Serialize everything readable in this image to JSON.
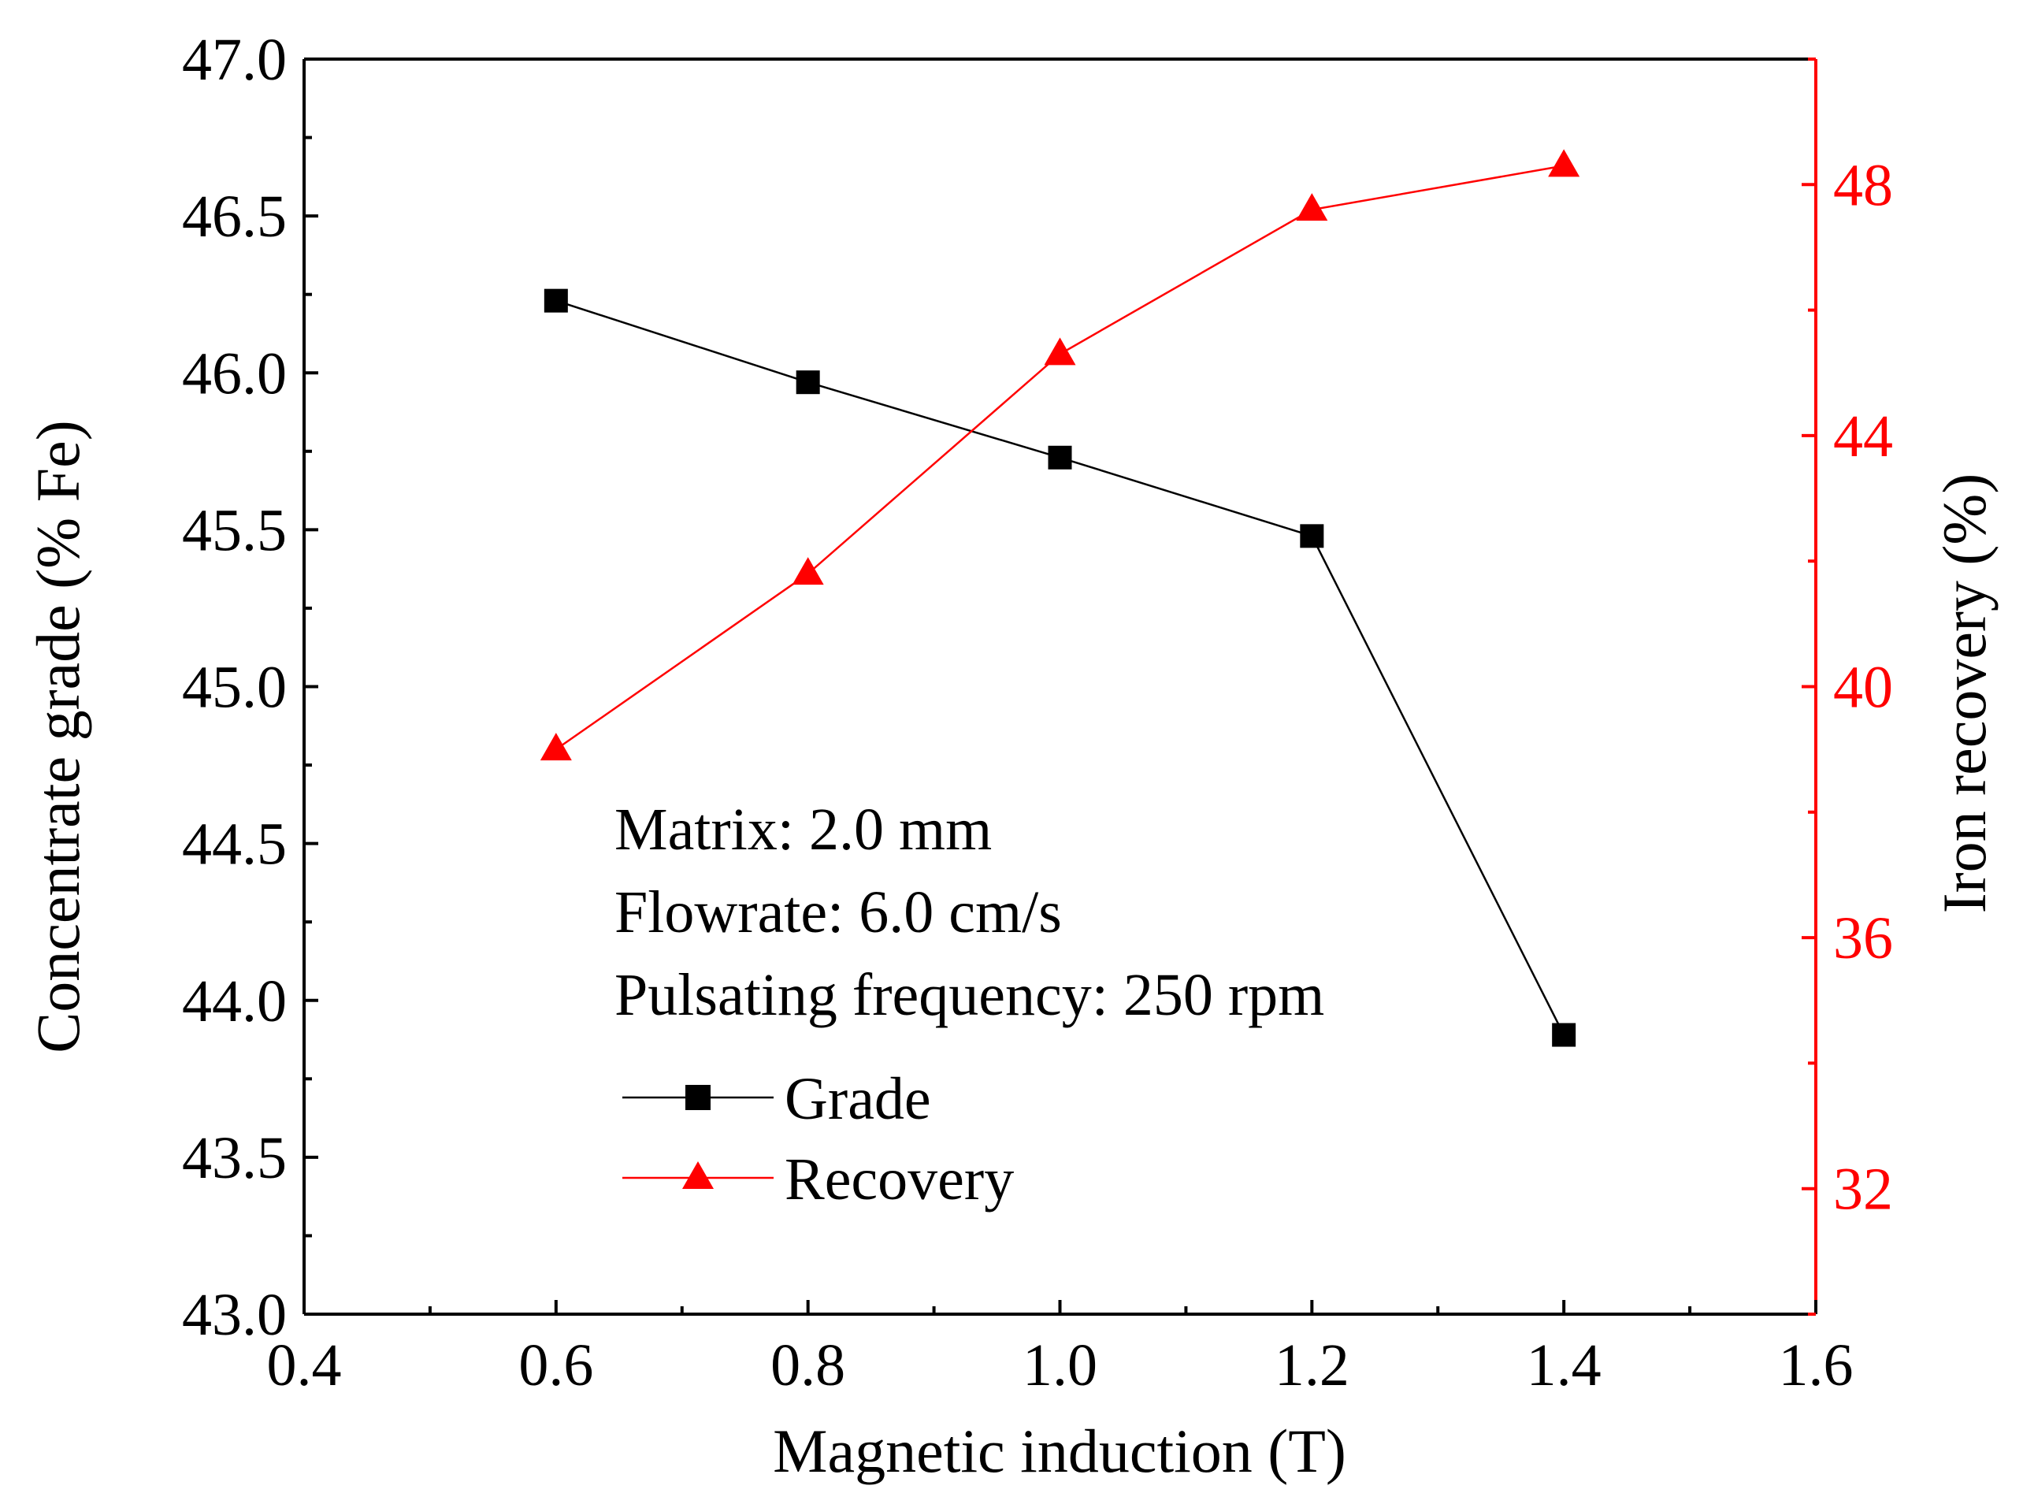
{
  "chart_data": {
    "type": "line",
    "title": "",
    "xlabel": "Magnetic induction (T)",
    "ylabel_left": "Concentrate grade (% Fe)",
    "ylabel_right": "Iron recovery (%)",
    "xlim": [
      0.4,
      1.6
    ],
    "ylim_left": [
      43.0,
      47.0
    ],
    "ylim_right": [
      30,
      50
    ],
    "x_ticks": [
      "0.4",
      "0.6",
      "0.8",
      "1.0",
      "1.2",
      "1.4",
      "1.6"
    ],
    "y_left_ticks": [
      "43.0",
      "43.5",
      "44.0",
      "44.5",
      "45.0",
      "45.5",
      "46.0",
      "46.5",
      "47.0"
    ],
    "y_right_ticks": [
      "32",
      "36",
      "40",
      "44",
      "48"
    ],
    "grid": false,
    "legend_position": "lower-left-center",
    "series": [
      {
        "name": "Grade",
        "axis": "left",
        "marker": "square",
        "color": "#000000",
        "x": [
          0.6,
          0.8,
          1.0,
          1.2,
          1.4
        ],
        "values": [
          46.23,
          45.97,
          45.73,
          45.48,
          43.89
        ]
      },
      {
        "name": "Recovery",
        "axis": "right",
        "marker": "triangle",
        "color": "#ff0000",
        "x": [
          0.6,
          0.8,
          1.0,
          1.2,
          1.4
        ],
        "values": [
          39.0,
          41.8,
          45.3,
          47.6,
          48.3
        ]
      }
    ],
    "annotations": [
      "Matrix: 2.0 mm",
      "Flowrate: 6.0 cm/s",
      "Pulsating frequency: 250 rpm"
    ]
  }
}
